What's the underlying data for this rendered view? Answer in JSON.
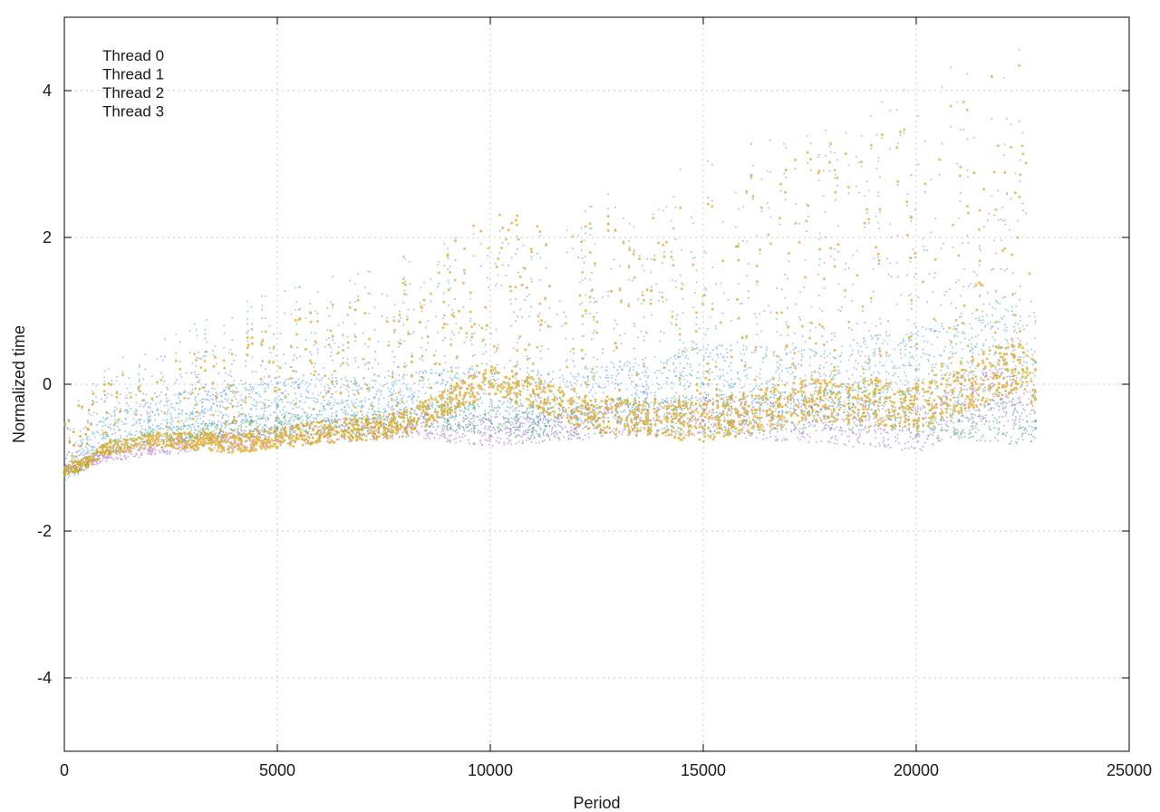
{
  "chart_data": {
    "type": "scatter",
    "title": "",
    "xlabel": "Period",
    "ylabel": "Normalized time",
    "xlim": [
      0,
      25000
    ],
    "ylim": [
      -5,
      5
    ],
    "xticks": [
      0,
      5000,
      10000,
      15000,
      20000,
      25000
    ],
    "yticks": [
      -4,
      -2,
      0,
      2,
      4
    ],
    "xtick_labels": [
      "0",
      "5000",
      "10000",
      "15000",
      "20000",
      "25000"
    ],
    "ytick_labels": [
      "-4",
      "-2",
      "0",
      "2",
      "4"
    ],
    "grid": true,
    "legend_position": "top-left",
    "x_max_data": 22800,
    "series": [
      {
        "name": "Thread 0",
        "color": "#9b59d0",
        "points": [
          [
            0,
            -1.2
          ],
          [
            500,
            -1.1
          ],
          [
            1000,
            -1.0
          ],
          [
            2000,
            -0.9
          ],
          [
            3000,
            -0.85
          ],
          [
            4000,
            -0.8
          ],
          [
            6000,
            -0.7
          ],
          [
            8000,
            -0.6
          ],
          [
            10000,
            -0.7
          ],
          [
            12000,
            -0.6
          ],
          [
            15000,
            -0.5
          ],
          [
            18000,
            -0.6
          ],
          [
            20000,
            -0.7
          ],
          [
            22000,
            -0.2
          ],
          [
            22800,
            -0.5
          ]
        ]
      },
      {
        "name": "Thread 1",
        "color": "#2e9e6e",
        "points": [
          [
            0,
            -1.2
          ],
          [
            500,
            -1.1
          ],
          [
            1000,
            -0.9
          ],
          [
            2000,
            -0.7
          ],
          [
            3000,
            -0.7
          ],
          [
            5000,
            -0.6
          ],
          [
            7000,
            -0.6
          ],
          [
            9000,
            -0.5
          ],
          [
            11000,
            -0.6
          ],
          [
            13000,
            -0.5
          ],
          [
            16000,
            -0.5
          ],
          [
            19000,
            -0.4
          ],
          [
            21000,
            -0.5
          ],
          [
            22800,
            -0.6
          ]
        ]
      },
      {
        "name": "Thread 2",
        "color": "#3a9ad9",
        "points": [
          [
            0,
            -1.2
          ],
          [
            500,
            -1.0
          ],
          [
            1000,
            -0.7
          ],
          [
            2000,
            -0.5
          ],
          [
            3000,
            -0.4
          ],
          [
            5000,
            -0.3
          ],
          [
            7000,
            -0.3
          ],
          [
            9000,
            -0.2
          ],
          [
            11000,
            -0.3
          ],
          [
            13000,
            -0.2
          ],
          [
            15000,
            0.0
          ],
          [
            18000,
            -0.1
          ],
          [
            20000,
            0.2
          ],
          [
            22000,
            0.5
          ],
          [
            22800,
            0.3
          ]
        ]
      },
      {
        "name": "Thread 3",
        "color": "#e0a820",
        "points": [
          [
            0,
            -1.2
          ],
          [
            500,
            -1.1
          ],
          [
            1000,
            -0.9
          ],
          [
            2000,
            -0.8
          ],
          [
            3000,
            -0.8
          ],
          [
            4000,
            -0.85
          ],
          [
            6000,
            -0.7
          ],
          [
            8000,
            -0.6
          ],
          [
            10000,
            0.0
          ],
          [
            12500,
            -0.5
          ],
          [
            15000,
            -0.6
          ],
          [
            17500,
            -0.3
          ],
          [
            20000,
            -0.4
          ],
          [
            22500,
            0.2
          ],
          [
            22800,
            -0.2
          ]
        ]
      }
    ]
  }
}
